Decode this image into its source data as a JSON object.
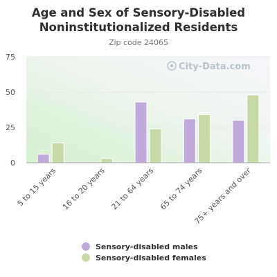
{
  "chart_data": {
    "type": "bar",
    "title": "Age and Sex of Sensory-Disabled Noninstitutionalized Residents",
    "subtitle": "Zip code 24065",
    "watermark": "City-Data.com",
    "categories": [
      "5 to 15 years",
      "16 to 20 years",
      "21 to 64 years",
      "65 to 74 years",
      "75+ years and over"
    ],
    "series": [
      {
        "name": "Sensory-disabled males",
        "color": "#c0aadc",
        "values": [
          6,
          0,
          43,
          31,
          30
        ]
      },
      {
        "name": "Sensory-disabled females",
        "color": "#c6d9a6",
        "values": [
          14,
          3,
          24,
          34,
          48
        ]
      }
    ],
    "ylim": [
      0,
      75
    ],
    "yticks": [
      0,
      25,
      50,
      75
    ],
    "grid": true,
    "legend_position": "bottom-center"
  }
}
